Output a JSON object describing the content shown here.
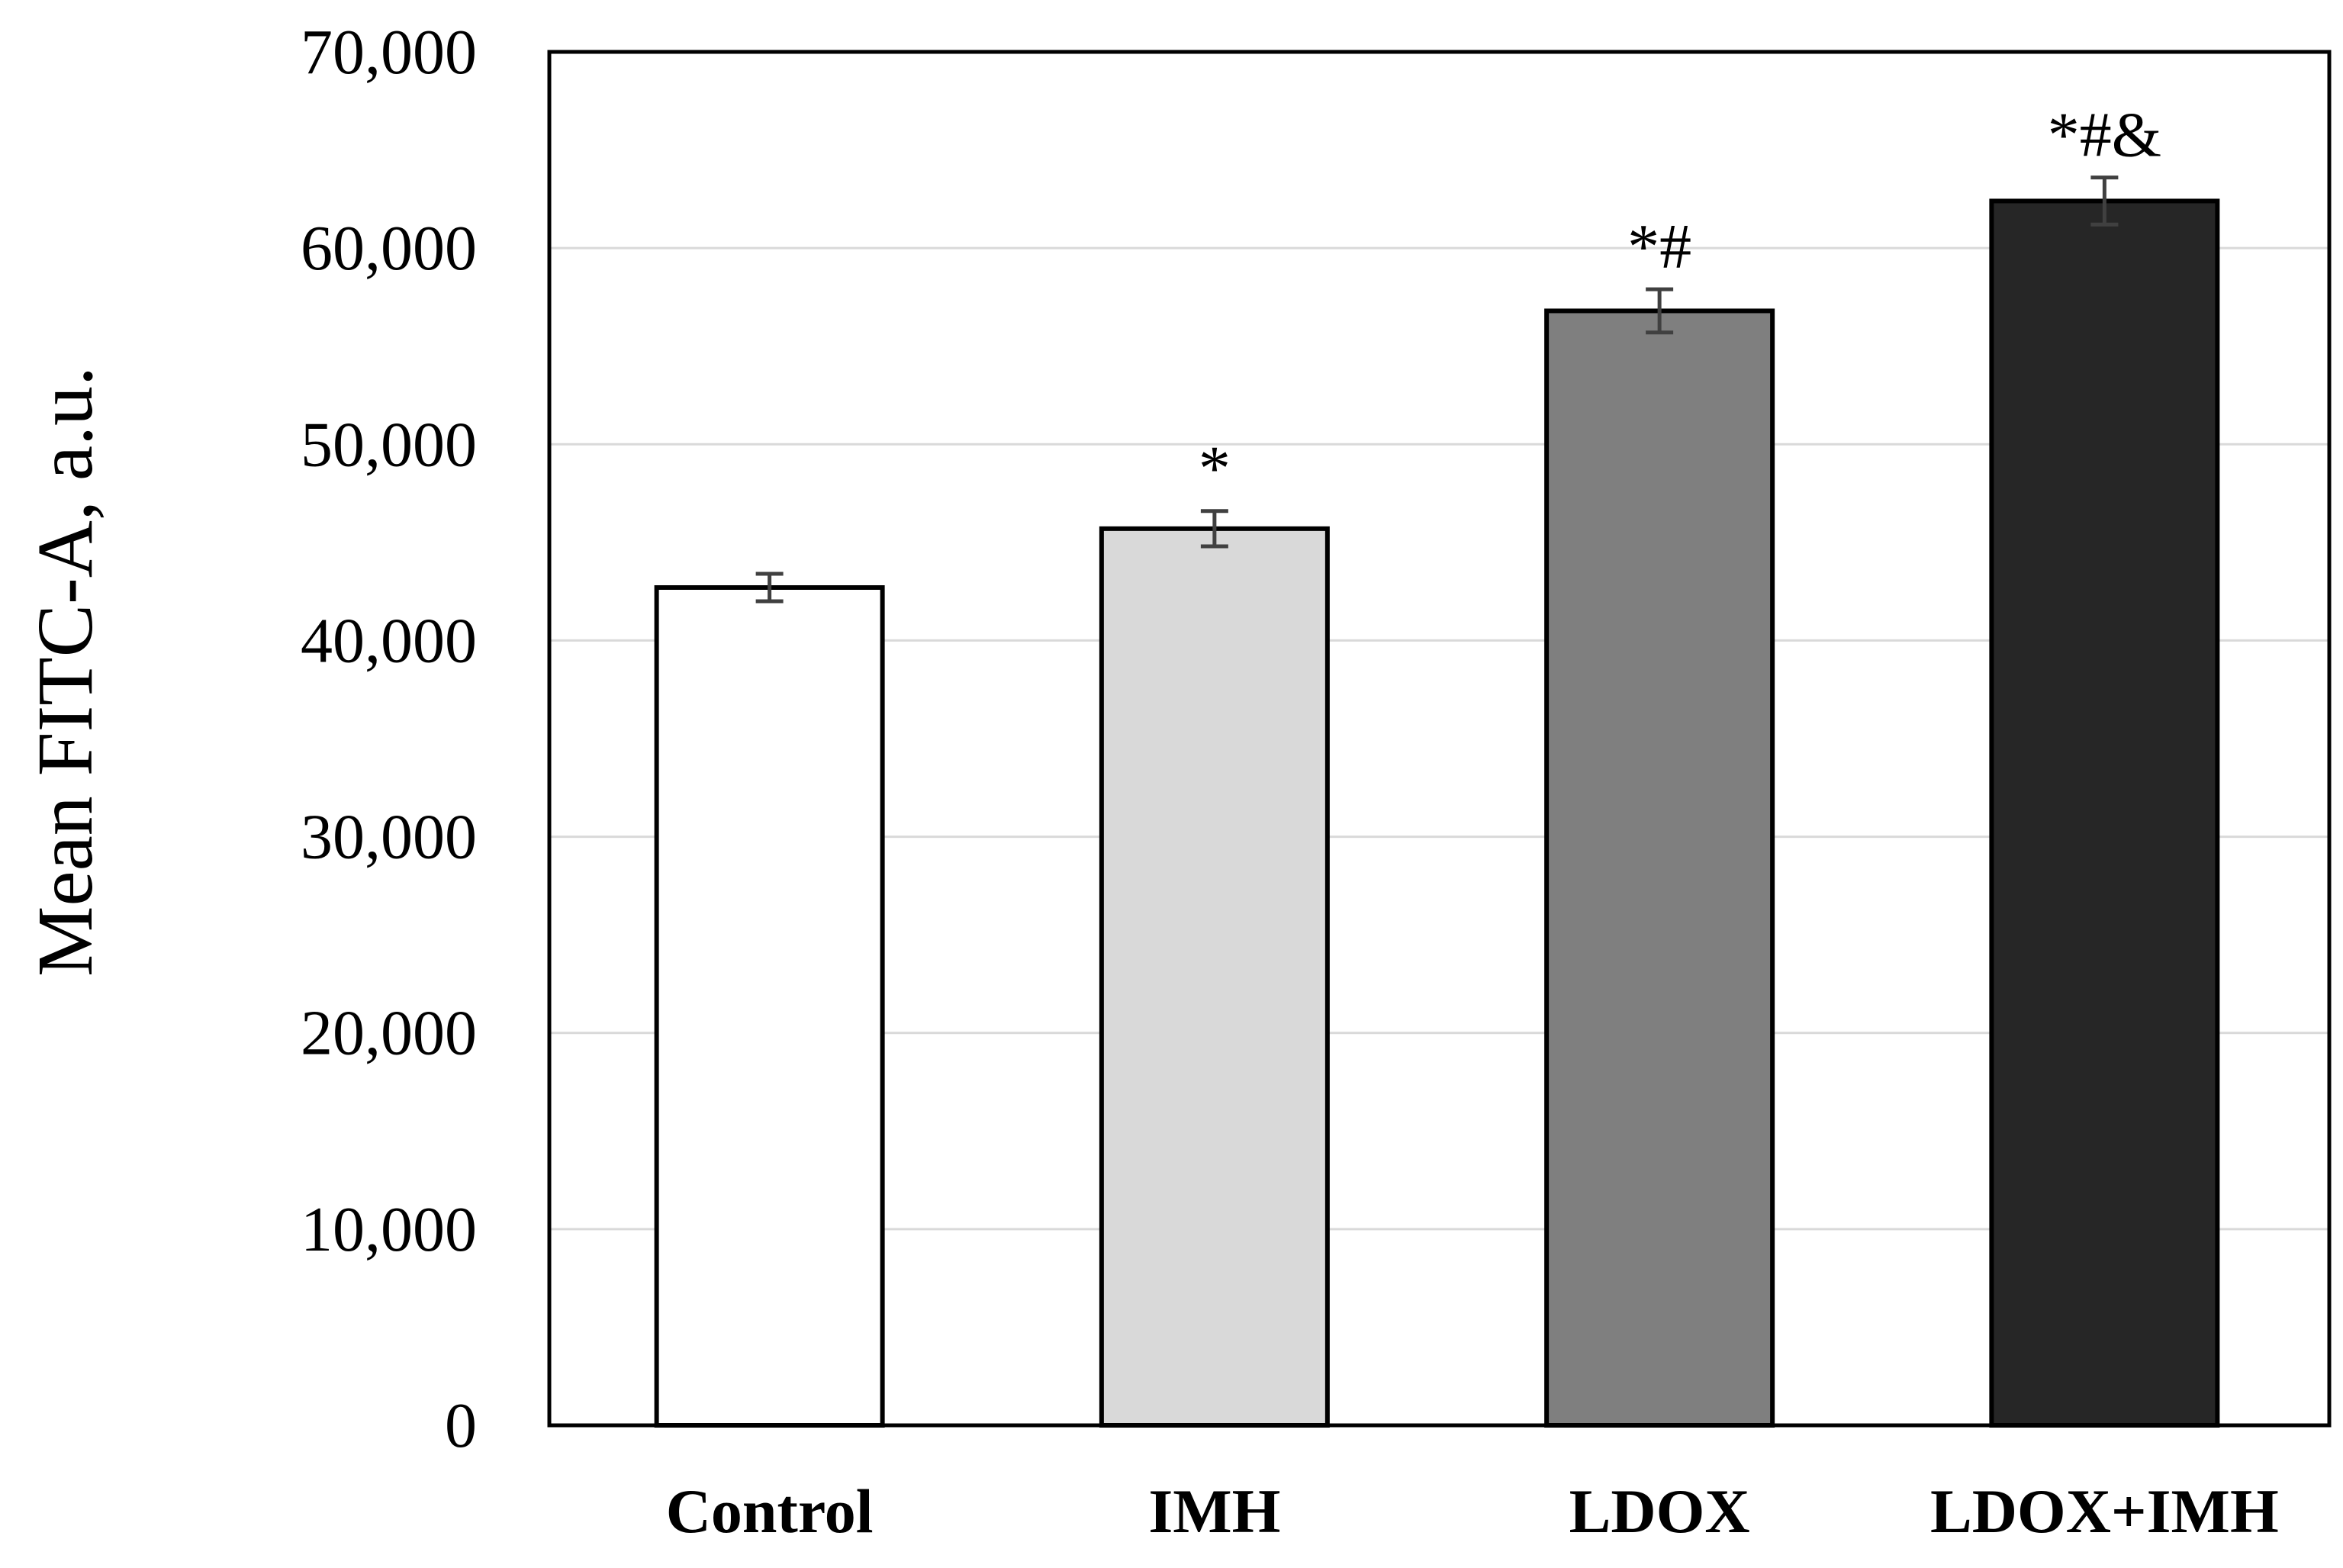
{
  "chart_data": {
    "type": "bar",
    "title": "",
    "xlabel": "",
    "ylabel": "Mean FITC-A, a.u.",
    "ylim": [
      0,
      70000
    ],
    "yticks": [
      0,
      10000,
      20000,
      30000,
      40000,
      50000,
      60000,
      70000
    ],
    "ytick_labels": [
      "0",
      "10,000",
      "20,000",
      "30,000",
      "40,000",
      "50,000",
      "60,000",
      "70,000"
    ],
    "grid": true,
    "categories": [
      "Control",
      "IMH",
      "LDOX",
      "LDOX+IMH"
    ],
    "values": [
      42700,
      45700,
      56800,
      62400
    ],
    "errors": [
      700,
      900,
      1100,
      1200
    ],
    "annotations": [
      "",
      "*",
      "*#",
      "*#&"
    ],
    "bar_colors": [
      "#ffffff",
      "#d9d9d9",
      "#7f7f7f",
      "#262626"
    ],
    "error_bar_color": "#404040",
    "grid_color": "#d9d9d9"
  }
}
